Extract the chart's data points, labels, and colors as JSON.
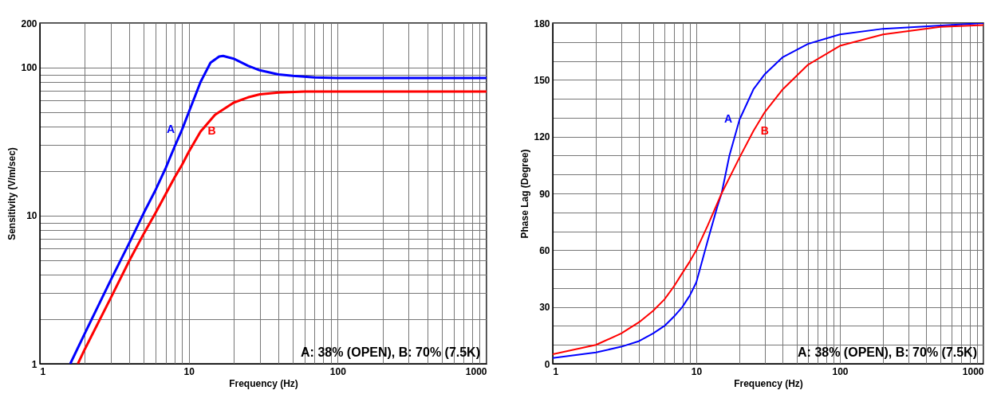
{
  "chart_data": [
    {
      "type": "line",
      "xlabel": "Frequency (Hz)",
      "ylabel": "Sensitivity (V/m/sec)",
      "log": "xy",
      "grid": true,
      "xlim": [
        1,
        1000
      ],
      "xticks": [
        1,
        {
          "value": 2,
          "label": null
        },
        {
          "value": 3,
          "label": null
        },
        {
          "value": 4,
          "label": null
        },
        {
          "value": 5,
          "label": null
        },
        {
          "value": 6,
          "label": null
        },
        {
          "value": 7,
          "label": null
        },
        {
          "value": 8,
          "label": null
        },
        {
          "value": 9,
          "label": null
        },
        10,
        {
          "value": 20,
          "label": null
        },
        {
          "value": 30,
          "label": null
        },
        {
          "value": 40,
          "label": null
        },
        {
          "value": 50,
          "label": null
        },
        {
          "value": 60,
          "label": null
        },
        {
          "value": 70,
          "label": null
        },
        {
          "value": 80,
          "label": null
        },
        {
          "value": 90,
          "label": null
        },
        100,
        {
          "value": 200,
          "label": null
        },
        {
          "value": 300,
          "label": null
        },
        {
          "value": 400,
          "label": null
        },
        {
          "value": 500,
          "label": null
        },
        {
          "value": 600,
          "label": null
        },
        {
          "value": 700,
          "label": null
        },
        {
          "value": 800,
          "label": null
        },
        {
          "value": 900,
          "label": null
        },
        1000
      ],
      "ylim": [
        1,
        200
      ],
      "yticks": [
        1,
        {
          "value": 2,
          "label": null
        },
        {
          "value": 3,
          "label": null
        },
        {
          "value": 4,
          "label": null
        },
        {
          "value": 5,
          "label": null
        },
        {
          "value": 6,
          "label": null
        },
        {
          "value": 7,
          "label": null
        },
        {
          "value": 8,
          "label": null
        },
        {
          "value": 9,
          "label": null
        },
        10,
        {
          "value": 20,
          "label": null
        },
        {
          "value": 30,
          "label": null
        },
        {
          "value": 40,
          "label": null
        },
        {
          "value": 50,
          "label": null
        },
        {
          "value": 60,
          "label": null
        },
        {
          "value": 70,
          "label": null
        },
        {
          "value": 80,
          "label": null
        },
        {
          "value": 90,
          "label": null
        },
        100,
        200
      ],
      "series": [
        {
          "name": "A",
          "color": "#0000ff",
          "x": [
            1.6,
            2,
            3,
            4,
            5,
            6,
            7,
            8,
            9,
            10,
            12,
            14,
            16,
            17,
            20,
            25,
            30,
            40,
            50,
            70,
            100,
            200,
            1000
          ],
          "values": [
            1,
            1.6,
            3.7,
            6.6,
            10.5,
            15,
            21,
            29,
            38,
            50,
            80,
            108,
            119,
            120,
            115,
            103,
            96,
            90,
            88,
            86,
            85,
            85,
            85
          ]
        },
        {
          "name": "B",
          "color": "#ff0000",
          "x": [
            1.8,
            2,
            3,
            4,
            5,
            6,
            7,
            8,
            9,
            10,
            12,
            15,
            20,
            25,
            30,
            40,
            60,
            100,
            1000
          ],
          "values": [
            1,
            1.25,
            2.8,
            5,
            7.6,
            10.5,
            14,
            18,
            22,
            27,
            37,
            48,
            58,
            63,
            66,
            68,
            69,
            69,
            69
          ]
        }
      ],
      "annotations": [
        "A: 38% (OPEN),  B: 70% (7.5K)"
      ]
    },
    {
      "type": "line",
      "xlabel": "Frequency (Hz)",
      "ylabel": "Phase Lag (Degree)",
      "log": "x",
      "grid": true,
      "xlim": [
        1,
        1000
      ],
      "xticks": [
        1,
        {
          "value": 2,
          "label": null
        },
        {
          "value": 3,
          "label": null
        },
        {
          "value": 4,
          "label": null
        },
        {
          "value": 5,
          "label": null
        },
        {
          "value": 6,
          "label": null
        },
        {
          "value": 7,
          "label": null
        },
        {
          "value": 8,
          "label": null
        },
        {
          "value": 9,
          "label": null
        },
        10,
        {
          "value": 20,
          "label": null
        },
        {
          "value": 30,
          "label": null
        },
        {
          "value": 40,
          "label": null
        },
        {
          "value": 50,
          "label": null
        },
        {
          "value": 60,
          "label": null
        },
        {
          "value": 70,
          "label": null
        },
        {
          "value": 80,
          "label": null
        },
        {
          "value": 90,
          "label": null
        },
        100,
        {
          "value": 200,
          "label": null
        },
        {
          "value": 300,
          "label": null
        },
        {
          "value": 400,
          "label": null
        },
        {
          "value": 500,
          "label": null
        },
        {
          "value": 600,
          "label": null
        },
        {
          "value": 700,
          "label": null
        },
        {
          "value": 800,
          "label": null
        },
        {
          "value": 900,
          "label": null
        },
        1000
      ],
      "ylim": [
        0,
        180
      ],
      "yticks": [
        0,
        {
          "value": 10,
          "label": null
        },
        {
          "value": 20,
          "label": null
        },
        30,
        {
          "value": 40,
          "label": null
        },
        {
          "value": 50,
          "label": null
        },
        60,
        {
          "value": 70,
          "label": null
        },
        {
          "value": 80,
          "label": null
        },
        90,
        {
          "value": 100,
          "label": null
        },
        {
          "value": 110,
          "label": null
        },
        120,
        {
          "value": 130,
          "label": null
        },
        {
          "value": 140,
          "label": null
        },
        150,
        {
          "value": 160,
          "label": null
        },
        {
          "value": 170,
          "label": null
        },
        180
      ],
      "series": [
        {
          "name": "A",
          "color": "#0000ff",
          "x": [
            1,
            2,
            3,
            4,
            5,
            6,
            7,
            8,
            9,
            10,
            12,
            14,
            15,
            17,
            20,
            25,
            30,
            40,
            60,
            100,
            200,
            1000
          ],
          "values": [
            3,
            6,
            9,
            12,
            16,
            20,
            25,
            30,
            36,
            43,
            65,
            83,
            90,
            110,
            129,
            145,
            153,
            162,
            169,
            174,
            177,
            180
          ]
        },
        {
          "name": "B",
          "color": "#ff0000",
          "x": [
            1,
            2,
            3,
            4,
            5,
            6,
            7,
            8,
            9,
            10,
            12,
            15,
            20,
            25,
            30,
            40,
            60,
            100,
            200,
            500,
            1000
          ],
          "values": [
            5,
            10,
            16,
            22,
            28,
            34,
            41,
            48,
            54,
            60,
            73,
            90,
            109,
            123,
            133,
            145,
            158,
            168,
            174,
            178,
            179
          ]
        }
      ],
      "annotations": [
        "A: 38% (OPEN),  B: 70% (7.5K)"
      ]
    }
  ]
}
